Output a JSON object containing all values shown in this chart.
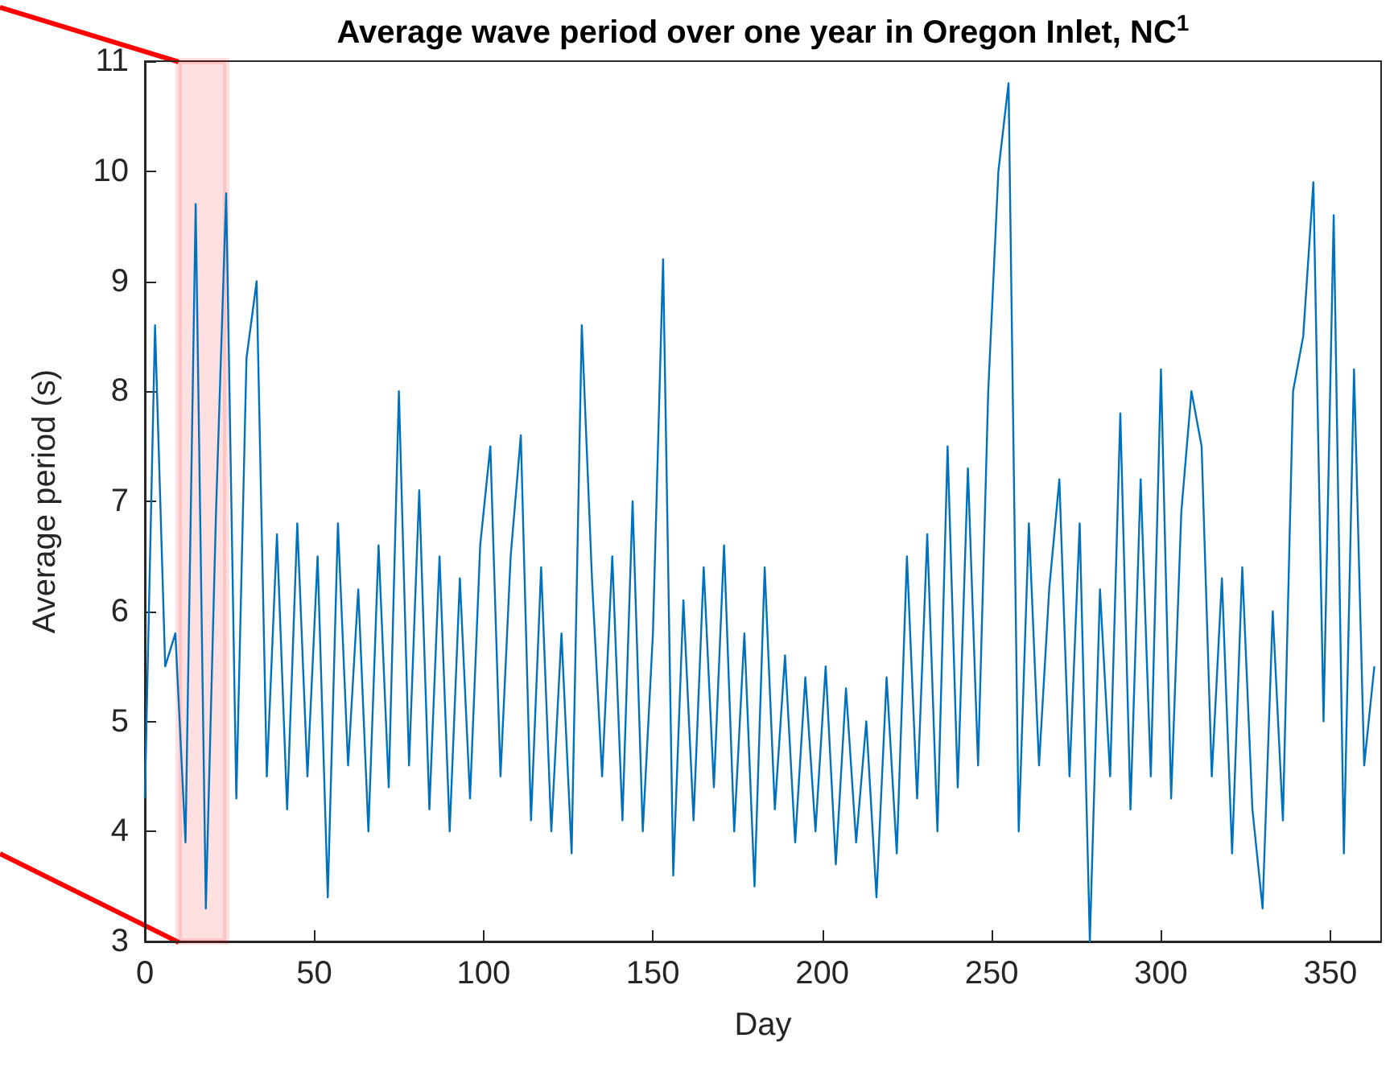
{
  "chart_data": {
    "type": "line",
    "title": "Average wave period over one year in Oregon Inlet, NC$^{1}$",
    "xlabel": "Day",
    "ylabel": "Average period (s)",
    "x": [
      0,
      3,
      6,
      9,
      12,
      15,
      18,
      21,
      24,
      27,
      30,
      33,
      36,
      39,
      42,
      45,
      48,
      51,
      54,
      57,
      60,
      63,
      66,
      69,
      72,
      75,
      78,
      81,
      84,
      87,
      90,
      93,
      96,
      99,
      102,
      105,
      108,
      111,
      114,
      117,
      120,
      123,
      126,
      129,
      132,
      135,
      138,
      141,
      144,
      147,
      150,
      153,
      156,
      159,
      162,
      165,
      168,
      171,
      174,
      177,
      180,
      183,
      186,
      189,
      192,
      195,
      198,
      201,
      204,
      207,
      210,
      213,
      216,
      219,
      222,
      225,
      228,
      231,
      234,
      237,
      240,
      243,
      246,
      249,
      252,
      255,
      258,
      261,
      264,
      267,
      270,
      273,
      276,
      279,
      282,
      285,
      288,
      291,
      294,
      297,
      300,
      303,
      306,
      309,
      312,
      315,
      318,
      321,
      324,
      327,
      330,
      333,
      336,
      339,
      342,
      345,
      348,
      351,
      354,
      357,
      360,
      363
    ],
    "series": [
      {
        "color": "#0072bd",
        "values": [
          4.3,
          8.6,
          5.5,
          5.8,
          3.9,
          9.7,
          3.3,
          6.9,
          9.8,
          4.3,
          8.3,
          9.0,
          4.5,
          6.7,
          4.2,
          6.8,
          4.5,
          6.5,
          3.4,
          6.8,
          4.6,
          6.2,
          4.0,
          6.6,
          4.4,
          8.0,
          4.6,
          7.1,
          4.2,
          6.5,
          4.0,
          6.3,
          4.3,
          6.6,
          7.5,
          4.5,
          6.5,
          7.6,
          4.1,
          6.4,
          4.0,
          5.8,
          3.8,
          8.6,
          6.3,
          4.5,
          6.5,
          4.1,
          7.0,
          4.0,
          5.8,
          9.2,
          3.6,
          6.1,
          4.1,
          6.4,
          4.4,
          6.6,
          4.0,
          5.8,
          3.5,
          6.4,
          4.2,
          5.6,
          3.9,
          5.4,
          4.0,
          5.5,
          3.7,
          5.3,
          3.9,
          5.0,
          3.4,
          5.4,
          3.8,
          6.5,
          4.3,
          6.7,
          4.0,
          7.5,
          4.4,
          7.3,
          4.6,
          8.0,
          10.0,
          10.8,
          4.0,
          6.8,
          4.6,
          6.2,
          7.2,
          4.5,
          6.8,
          3.0,
          6.2,
          4.5,
          7.8,
          4.2,
          7.2,
          4.5,
          8.2,
          4.3,
          6.9,
          8.0,
          7.5,
          4.5,
          6.3,
          3.8,
          6.4,
          4.2,
          3.3,
          6.0,
          4.1,
          8.0,
          8.5,
          9.9,
          5.0,
          9.6,
          3.8,
          8.2,
          4.6,
          5.5
        ]
      }
    ],
    "xlim": [
      0,
      365
    ],
    "xticks": [
      0,
      50,
      100,
      150,
      200,
      250,
      300,
      350
    ],
    "ylim": [
      3,
      11
    ],
    "yticks": [
      3,
      4,
      5,
      6,
      7,
      8,
      9,
      10,
      11
    ],
    "bands": [
      {
        "axis": "x",
        "from": 10,
        "to": 24,
        "color": "#ff0000"
      }
    ],
    "grid": false,
    "marker": "none",
    "line_style": "solid"
  }
}
